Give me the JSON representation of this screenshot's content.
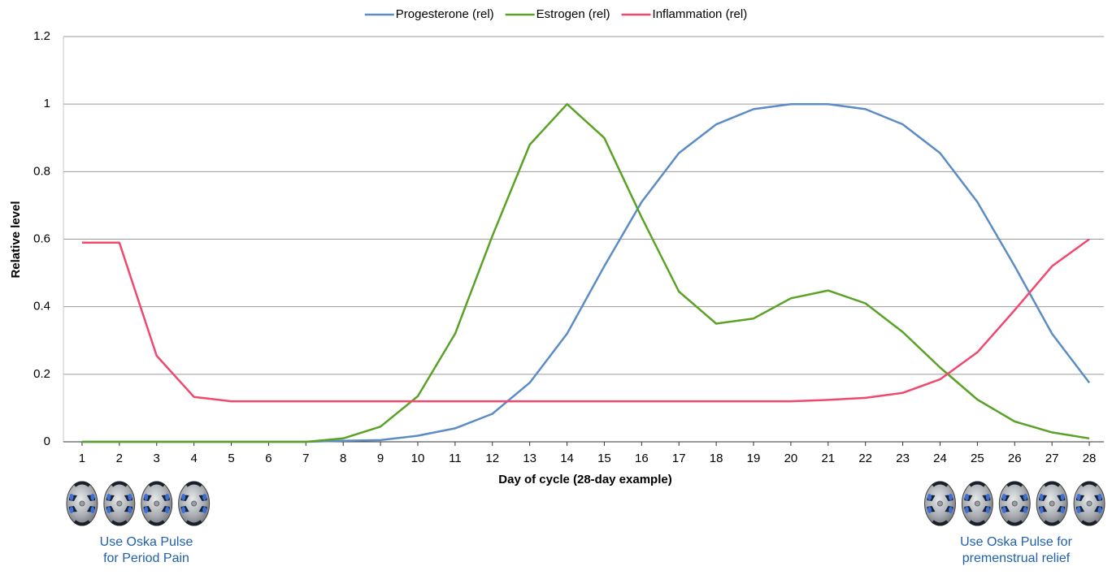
{
  "chart_data": {
    "type": "line",
    "xlabel": "Day of cycle (28-day example)",
    "ylabel": "Relative level",
    "x": [
      1,
      2,
      3,
      4,
      5,
      6,
      7,
      8,
      9,
      10,
      11,
      12,
      13,
      14,
      15,
      16,
      17,
      18,
      19,
      20,
      21,
      22,
      23,
      24,
      25,
      26,
      27,
      28
    ],
    "xlim": [
      0.5,
      28.5
    ],
    "xticks": [
      1,
      2,
      3,
      4,
      5,
      6,
      7,
      8,
      9,
      10,
      11,
      12,
      13,
      14,
      15,
      16,
      17,
      18,
      19,
      20,
      21,
      22,
      23,
      24,
      25,
      26,
      27,
      28
    ],
    "ylim": [
      0,
      1.2
    ],
    "yticks": [
      0,
      0.2,
      0.4,
      0.6,
      0.8,
      1,
      1.2
    ],
    "grid": true,
    "legend": "top",
    "series": [
      {
        "name": "Progesterone (rel)",
        "color": "#5b8cc6",
        "values": [
          0,
          0,
          0,
          0,
          0,
          0,
          0,
          0.003,
          0.005,
          0.018,
          0.04,
          0.083,
          0.175,
          0.32,
          0.52,
          0.71,
          0.855,
          0.94,
          0.985,
          1.0,
          1.0,
          0.985,
          0.94,
          0.855,
          0.71,
          0.52,
          0.32,
          0.175
        ]
      },
      {
        "name": "Estrogen (rel)",
        "color": "#5aa226",
        "values": [
          0,
          0,
          0,
          0,
          0,
          0,
          0,
          0.01,
          0.045,
          0.135,
          0.32,
          0.61,
          0.88,
          1.0,
          0.9,
          0.665,
          0.445,
          0.35,
          0.365,
          0.425,
          0.448,
          0.41,
          0.325,
          0.22,
          0.125,
          0.06,
          0.028,
          0.01
        ]
      },
      {
        "name": "Inflammation (rel)",
        "color": "#f0486f",
        "values": [
          0.59,
          0.59,
          0.255,
          0.133,
          0.12,
          0.12,
          0.12,
          0.12,
          0.12,
          0.12,
          0.12,
          0.12,
          0.12,
          0.12,
          0.12,
          0.12,
          0.12,
          0.12,
          0.12,
          0.12,
          0.124,
          0.13,
          0.145,
          0.185,
          0.265,
          0.39,
          0.52,
          0.6
        ]
      }
    ],
    "annotations": [
      {
        "lines": [
          "Use Oska Pulse",
          "for Period Pain"
        ]
      },
      {
        "lines": [
          "Use Oska Pulse for",
          "premenstrual relief"
        ]
      }
    ]
  }
}
